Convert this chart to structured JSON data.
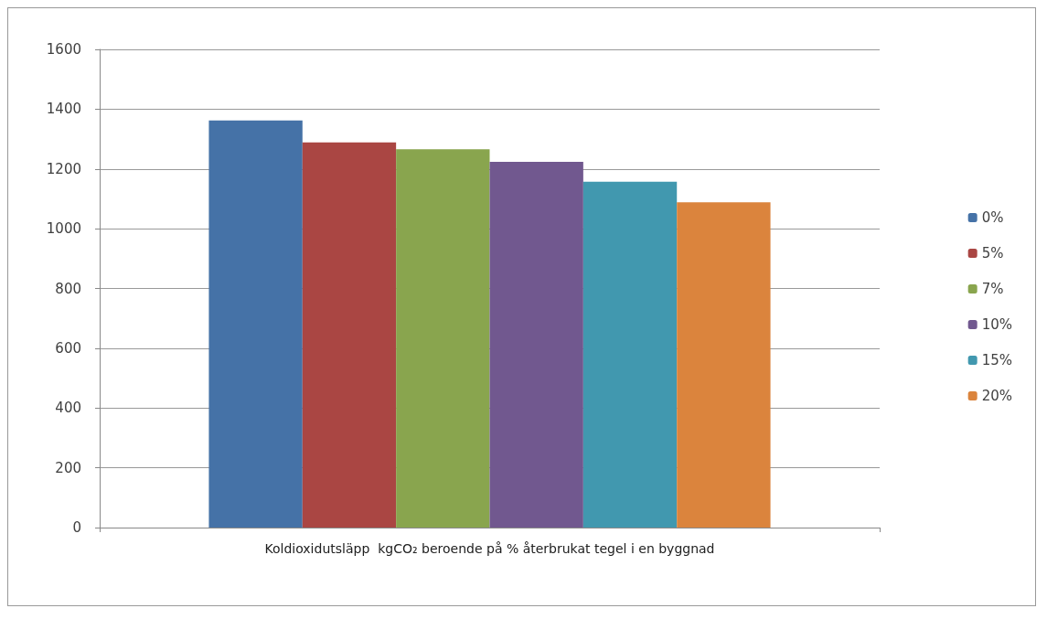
{
  "chart_data": {
    "type": "bar",
    "categories": [
      "Koldioxidutsläpp  kgCO₂ beroende på % återbrukat tegel i en byggnad"
    ],
    "series": [
      {
        "name": "0%",
        "color": "#4572a7",
        "values": [
          1362
        ]
      },
      {
        "name": "5%",
        "color": "#aa4643",
        "values": [
          1289
        ]
      },
      {
        "name": "7%",
        "color": "#89a54e",
        "values": [
          1266
        ]
      },
      {
        "name": "10%",
        "color": "#71588f",
        "values": [
          1224
        ]
      },
      {
        "name": "15%",
        "color": "#4198af",
        "values": [
          1157
        ]
      },
      {
        "name": "20%",
        "color": "#db843d",
        "values": [
          1088
        ]
      }
    ],
    "ylim": [
      0,
      1600
    ],
    "yticks": [
      0,
      200,
      400,
      600,
      800,
      1000,
      1200,
      1400,
      1600
    ],
    "grid": "y",
    "legend": "right"
  }
}
